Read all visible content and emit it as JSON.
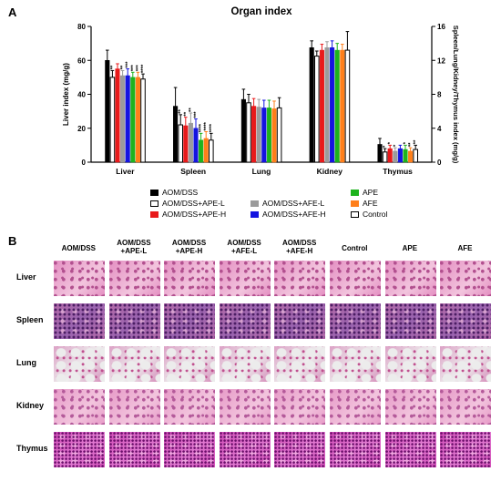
{
  "panels": {
    "a_label": "A",
    "b_label": "B"
  },
  "chart_data": {
    "type": "bar",
    "title": "Organ index",
    "ylabel_left": "Liver index (mg/g)",
    "ylabel_right": "Spleen/Lung/Kidney/Thymus index (mg/g)",
    "ylim_left": [
      0,
      80
    ],
    "ylim_right": [
      0,
      16
    ],
    "yticks_left": [
      "0",
      "20",
      "40",
      "60",
      "80"
    ],
    "yticks_right": [
      "0",
      "4",
      "8",
      "12",
      "16"
    ],
    "categories": [
      "Liver",
      "Spleen",
      "Lung",
      "Kidney",
      "Thymus"
    ],
    "grid": false,
    "legend_position": "bottom",
    "series": [
      {
        "name": "AOM/DSS",
        "color": "#000000",
        "hollow": false,
        "values": [
          60,
          6.6,
          7.4,
          13.5,
          2.1
        ],
        "errors": [
          6,
          2.2,
          1.2,
          0.8,
          0.7
        ],
        "marks": [
          "",
          "",
          "",
          "",
          ""
        ]
      },
      {
        "name": "AOM/DSS+APE-L",
        "color": "#ffffff",
        "hollow": true,
        "values": [
          50,
          4.4,
          7.0,
          12.5,
          1.2
        ],
        "errors": [
          4,
          1.2,
          1.0,
          0.6,
          0.4
        ],
        "marks": [
          "**",
          "**",
          "",
          "",
          "*"
        ]
      },
      {
        "name": "AOM/DSS+APE-H",
        "color": "#e8191a",
        "hollow": false,
        "values": [
          55,
          4.3,
          6.6,
          13.2,
          1.6
        ],
        "errors": [
          3,
          1.0,
          0.9,
          0.7,
          0.4
        ],
        "marks": [
          "",
          "**",
          "",
          "",
          "*"
        ]
      },
      {
        "name": "AOM/DSS+AFE-L",
        "color": "#9b9b9b",
        "hollow": false,
        "values": [
          51,
          4.6,
          6.5,
          13.5,
          1.3
        ],
        "errors": [
          3,
          1.2,
          0.9,
          0.7,
          0.4
        ],
        "marks": [
          "**",
          "**",
          "",
          "",
          "*"
        ]
      },
      {
        "name": "AOM/DSS+AFE-H",
        "color": "#1414e0",
        "hollow": false,
        "values": [
          51,
          4.0,
          6.4,
          13.5,
          1.6
        ],
        "errors": [
          4,
          1.1,
          0.9,
          0.8,
          0.4
        ],
        "marks": [
          "***",
          "***",
          "",
          "",
          ""
        ]
      },
      {
        "name": "APE",
        "color": "#1db31d",
        "hollow": false,
        "values": [
          50,
          2.6,
          6.4,
          13.2,
          1.5
        ],
        "errors": [
          3,
          0.8,
          0.9,
          0.8,
          0.5
        ],
        "marks": [
          "***",
          "****",
          "",
          "",
          "*"
        ]
      },
      {
        "name": "AFE",
        "color": "#ff7f1a",
        "hollow": false,
        "values": [
          50,
          2.8,
          6.3,
          13.2,
          1.3
        ],
        "errors": [
          3,
          0.8,
          0.9,
          0.7,
          0.4
        ],
        "marks": [
          "***",
          "****",
          "",
          "",
          "**"
        ]
      },
      {
        "name": "Control",
        "color": "#ffffff",
        "hollow": true,
        "values": [
          49,
          2.6,
          6.4,
          13.2,
          1.5
        ],
        "errors": [
          3,
          0.8,
          1.2,
          2.2,
          0.5
        ],
        "marks": [
          "****",
          "****",
          "",
          "",
          "**"
        ]
      }
    ]
  },
  "legend": {
    "items": [
      {
        "name": "AOM/DSS",
        "color": "#000000",
        "hollow": false
      },
      {
        "name": "AOM/DSS+APE-L",
        "color": "#ffffff",
        "hollow": true
      },
      {
        "name": "AOM/DSS+APE-H",
        "color": "#e8191a",
        "hollow": false
      },
      {
        "name": "AOM/DSS+AFE-L",
        "color": "#9b9b9b",
        "hollow": false
      },
      {
        "name": "AOM/DSS+AFE-H",
        "color": "#1414e0",
        "hollow": false
      },
      {
        "name": "APE",
        "color": "#1db31d",
        "hollow": false
      },
      {
        "name": "AFE",
        "color": "#ff7f1a",
        "hollow": false
      },
      {
        "name": "Control",
        "color": "#ffffff",
        "hollow": true
      }
    ]
  },
  "histology": {
    "columns": [
      "AOM/DSS",
      "AOM/DSS\n+APE-L",
      "AOM/DSS\n+APE-H",
      "AOM/DSS\n+AFE-L",
      "AOM/DSS\n+AFE-H",
      "Control",
      "APE",
      "AFE"
    ],
    "rows": [
      {
        "label": "Liver",
        "tint": "#e48fc2",
        "accent": "#b2508f"
      },
      {
        "label": "Spleen",
        "tint": "#b36aa8",
        "accent": "#6b2a6e"
      },
      {
        "label": "Lung",
        "tint": "#d9c2d4",
        "accent": "#c0508f"
      },
      {
        "label": "Kidney",
        "tint": "#e79bc8",
        "accent": "#b45a9a"
      },
      {
        "label": "Thymus",
        "tint": "#d24fb8",
        "accent": "#8d1f86"
      }
    ]
  }
}
